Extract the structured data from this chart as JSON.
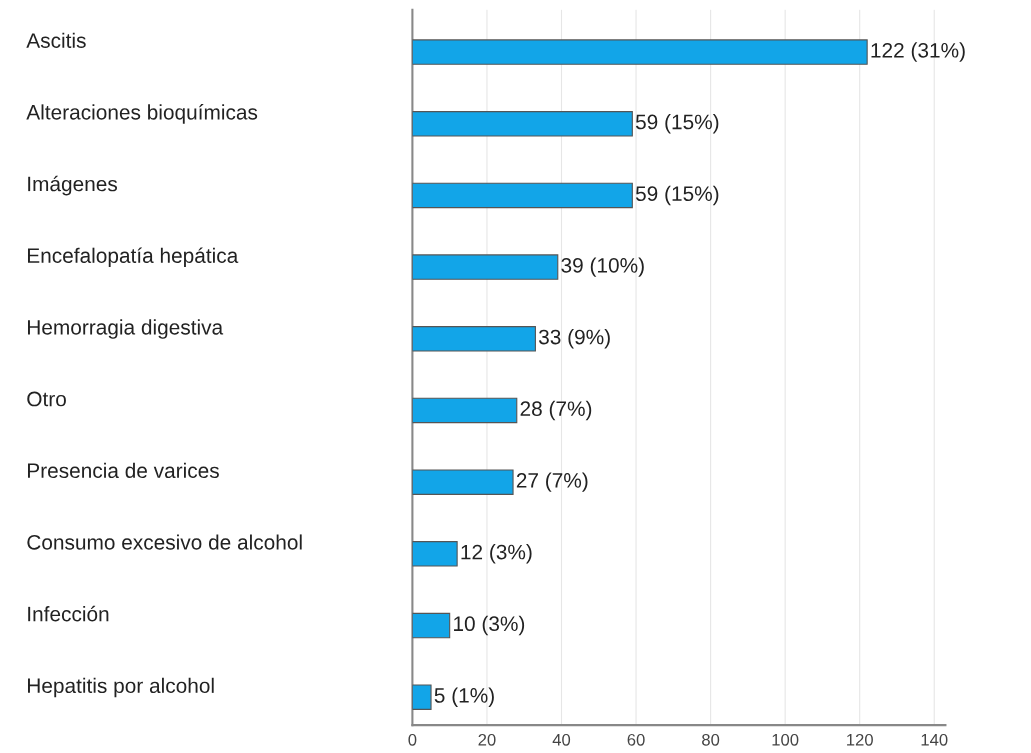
{
  "chart_data": {
    "type": "bar",
    "orientation": "horizontal",
    "categories": [
      "Ascitis",
      "Alteraciones bioquímicas",
      "Imágenes",
      "Encefalopatía hepática",
      "Hemorragia digestiva",
      "Otro",
      "Presencia de varices",
      "Consumo excesivo de alcohol",
      "Infección",
      "Hepatitis por alcohol"
    ],
    "values": [
      122,
      59,
      59,
      39,
      33,
      28,
      27,
      12,
      10,
      5
    ],
    "value_labels": [
      "122 (31%)",
      "59 (15%)",
      "59 (15%)",
      "39 (10%)",
      "33 (9%)",
      "28 (7%)",
      "27 (7%)",
      "12 (3%)",
      "10 (3%)",
      "5 (1%)"
    ],
    "color": "#12a5e8",
    "xlim": [
      0,
      143
    ],
    "xticks": [
      0,
      20,
      40,
      60,
      80,
      100,
      120,
      140
    ],
    "grid": "x",
    "legend": false
  }
}
